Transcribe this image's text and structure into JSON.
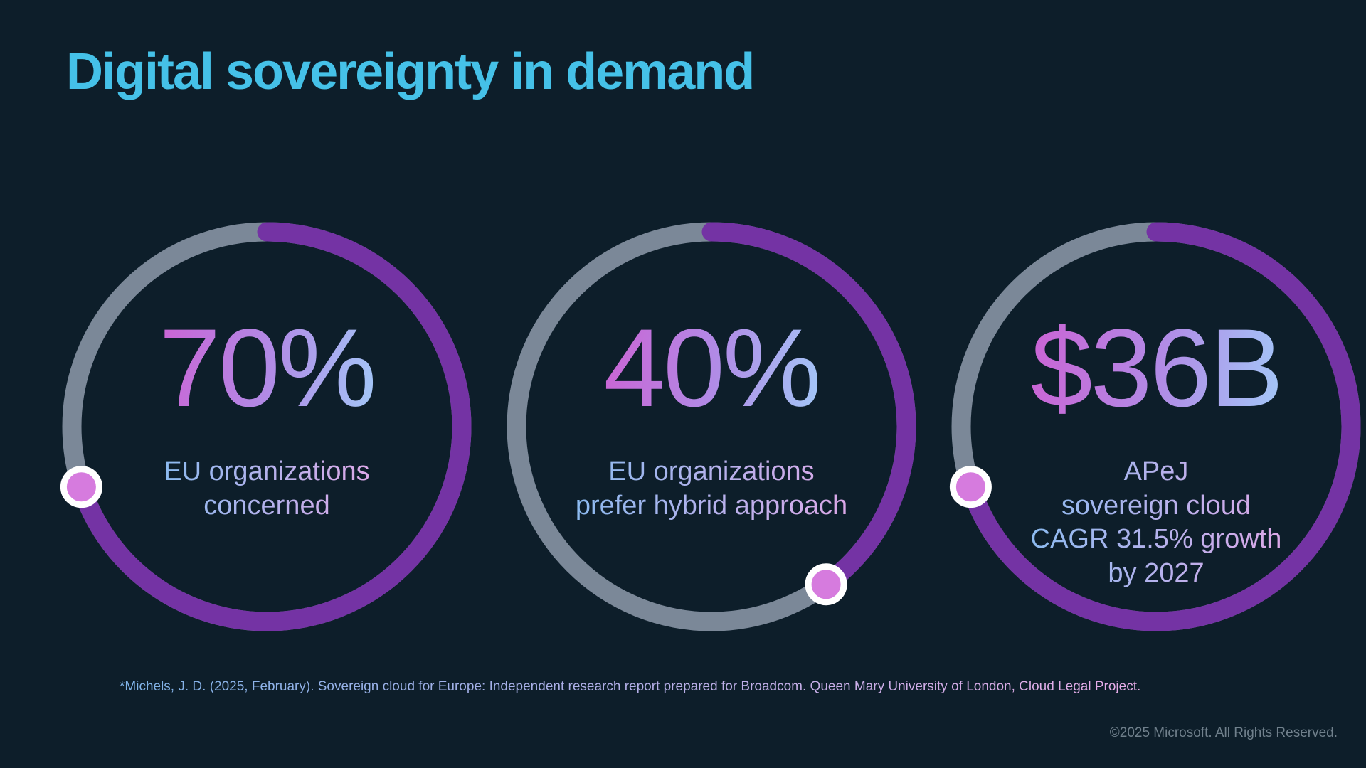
{
  "slide": {
    "title": "Digital sovereignty in demand",
    "footnote": "*Michels, J. D. (2025, February). Sovereign cloud for Europe: Independent research report prepared for Broadcom. Queen Mary University of London, Cloud Legal Project.",
    "copyright": "©2025 Microsoft. All Rights Reserved."
  },
  "chart_data": {
    "type": "pie",
    "subtype": "donut-progress-rings",
    "title": "Digital sovereignty in demand",
    "items": [
      {
        "value": "70%",
        "percent": 70,
        "label_lines": [
          "EU organizations",
          "concerned"
        ],
        "label": "EU organizations concerned"
      },
      {
        "value": "40%",
        "percent": 40,
        "label_lines": [
          "EU organizations",
          "prefer hybrid approach"
        ],
        "label": "EU organizations prefer hybrid approach"
      },
      {
        "value": "$36B",
        "percent": 70,
        "label_lines": [
          "APeJ",
          "sovereign cloud",
          "CAGR 31.5% growth",
          "by 2027"
        ],
        "label": "APeJ sovereign cloud CAGR 31.5% growth by 2027"
      }
    ],
    "layout_hints": {
      "rings_start_angle": "12 o'clock, clockwise",
      "endpoint_marker": "dot at arc end"
    },
    "colors": {
      "background": "#0D1E2A",
      "title": "#45C1E8",
      "ring_track": "#7B8898",
      "ring_progress": "#7433A4",
      "dot_fill": "#D67BDE",
      "dot_ring": "#FFFFFF",
      "value_gradient_from": "#CB63D4",
      "value_gradient_to": "#A3C8F8",
      "label_gradient_from": "#8CBBF0",
      "label_gradient_to": "#DCA8E8",
      "footnote_gradient_from": "#7FB3E8",
      "footnote_gradient_to": "#E8ACE8",
      "copyright_text": "#70808C"
    }
  }
}
